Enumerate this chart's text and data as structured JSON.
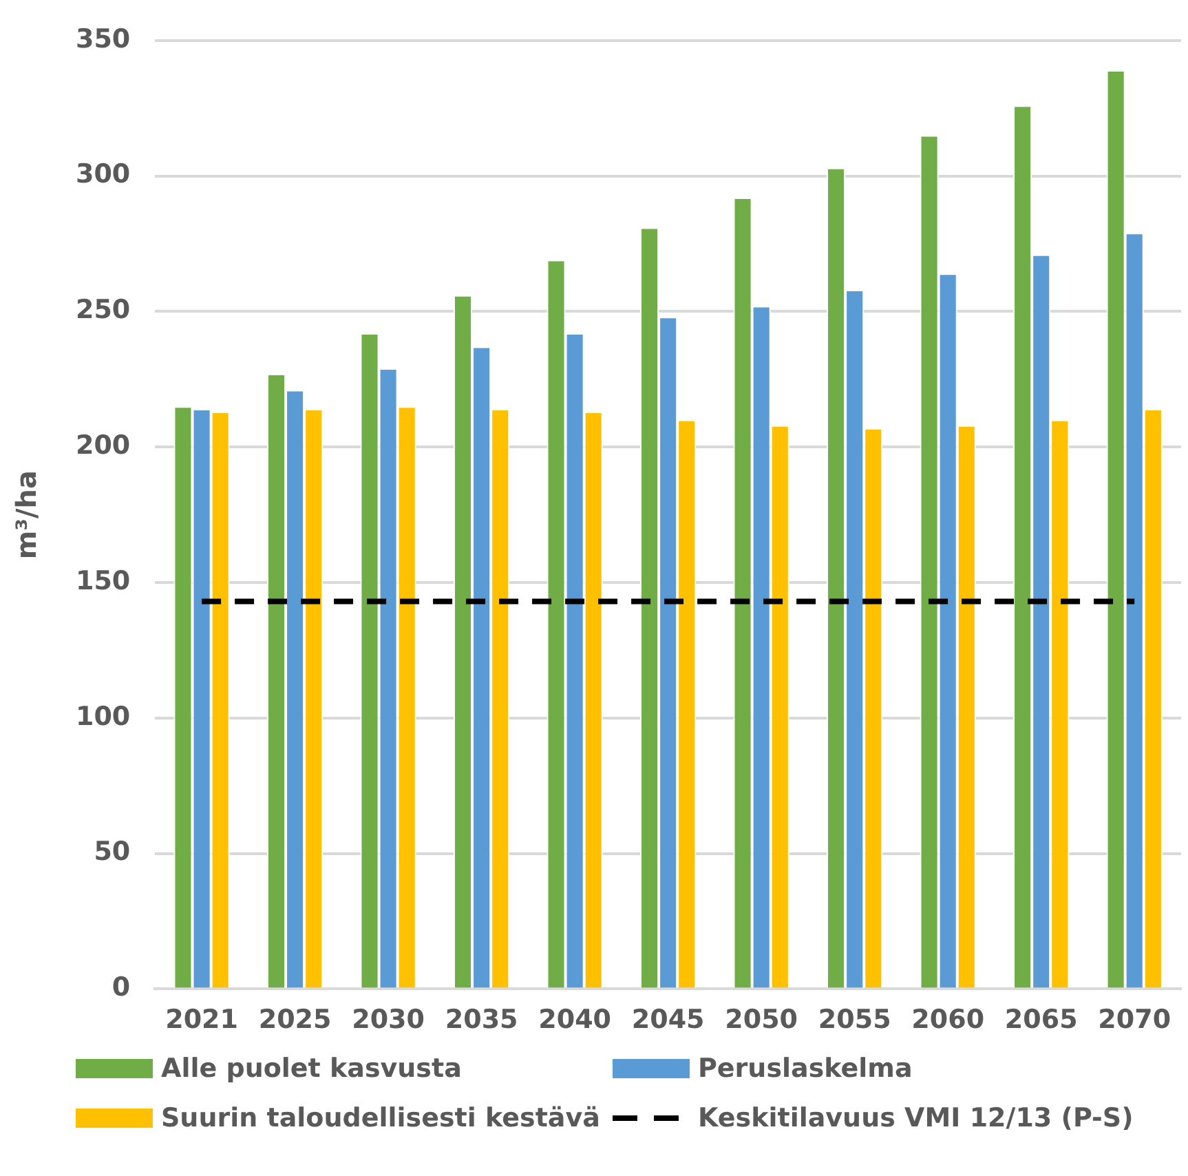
{
  "chart_data": {
    "type": "bar",
    "ylabel": "m³/ha",
    "categories": [
      "2021",
      "2025",
      "2030",
      "2035",
      "2040",
      "2045",
      "2050",
      "2055",
      "2060",
      "2065",
      "2070"
    ],
    "series": [
      {
        "name": "Alle puolet kasvusta",
        "color": "#70ad47",
        "values": [
          215,
          227,
          242,
          256,
          269,
          281,
          292,
          303,
          315,
          326,
          339
        ]
      },
      {
        "name": "Peruslaskelma",
        "color": "#5b9bd5",
        "values": [
          214,
          221,
          229,
          237,
          242,
          248,
          252,
          258,
          264,
          271,
          279
        ]
      },
      {
        "name": "Suurin taloudellisesti kestävä",
        "color": "#ffc000",
        "values": [
          213,
          214,
          215,
          214,
          213,
          210,
          208,
          207,
          208,
          210,
          214
        ]
      },
      {
        "name": "Keskitilavuus VMI 12/13 (P-S)",
        "type": "line",
        "color": "#000000",
        "line_style": "dashed",
        "marker": "none",
        "values": [
          143,
          143,
          143,
          143,
          143,
          143,
          143,
          143,
          143,
          143,
          143
        ]
      }
    ],
    "ylim": [
      0,
      350
    ],
    "yticks": [
      0,
      50,
      100,
      150,
      200,
      250,
      300,
      350
    ],
    "grid": "y",
    "legend": "bottom"
  }
}
